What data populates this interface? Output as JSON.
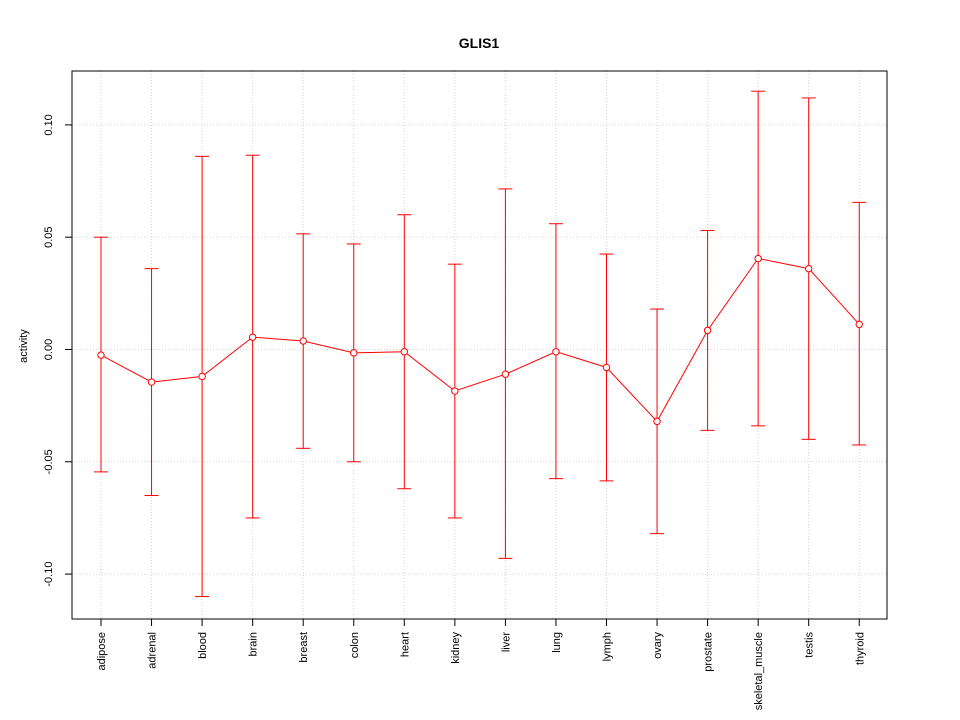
{
  "chart_data": {
    "type": "line",
    "title": "GLIS1",
    "xlabel": "",
    "ylabel": "activity",
    "ylim": [
      -0.12,
      0.124
    ],
    "yticks": [
      -0.1,
      -0.05,
      0.0,
      0.05,
      0.1
    ],
    "ytick_labels": [
      "-0.10",
      "-0.05",
      "0.00",
      "0.05",
      "0.10"
    ],
    "grid": true,
    "color": "#ff0000",
    "categories": [
      "adipose",
      "adrenal",
      "blood",
      "brain",
      "breast",
      "colon",
      "heart",
      "kidney",
      "liver",
      "lung",
      "lymph",
      "ovary",
      "prostate",
      "skeletal_muscle",
      "testis",
      "thyroid"
    ],
    "values": [
      -0.0025,
      -0.0145,
      -0.012,
      0.0055,
      0.0038,
      -0.0015,
      -0.001,
      -0.0185,
      -0.011,
      -0.001,
      -0.008,
      -0.032,
      0.0085,
      0.0405,
      0.036,
      0.0112
    ],
    "upper": [
      0.05,
      0.036,
      0.086,
      0.0865,
      0.0515,
      0.047,
      0.06,
      0.038,
      0.0715,
      0.056,
      0.0425,
      0.018,
      0.053,
      0.115,
      0.112,
      0.0655
    ],
    "lower": [
      -0.0545,
      -0.065,
      -0.11,
      -0.075,
      -0.044,
      -0.05,
      -0.062,
      -0.075,
      -0.093,
      -0.0575,
      -0.0585,
      -0.082,
      -0.036,
      -0.034,
      -0.04,
      -0.0425
    ]
  }
}
